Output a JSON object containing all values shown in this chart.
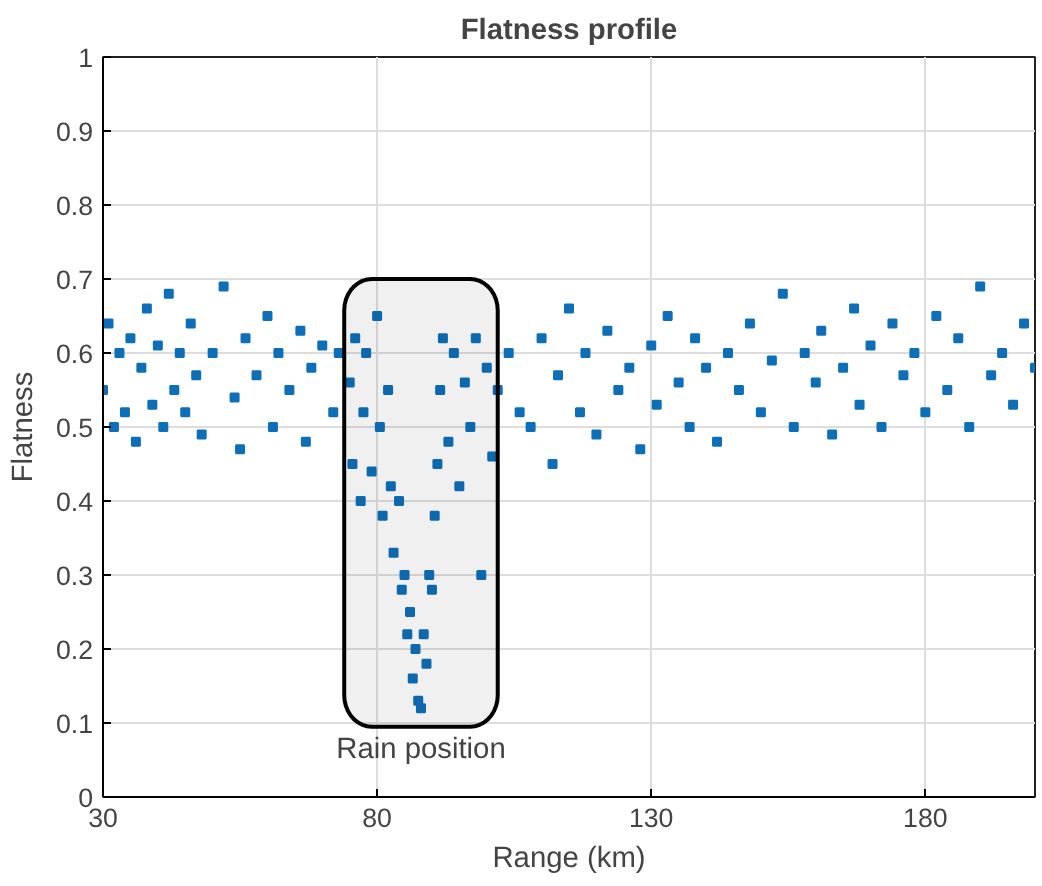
{
  "chart_data": {
    "type": "scatter",
    "title": "Flatness profile",
    "xlabel": "Range (km)",
    "ylabel": "Flatness",
    "x": [
      30,
      31,
      32,
      33,
      34,
      35,
      36,
      37,
      38,
      39,
      40,
      41,
      42,
      43,
      44,
      45,
      46,
      47,
      48,
      50,
      52,
      54,
      55,
      56,
      58,
      60,
      61,
      62,
      64,
      66,
      67,
      68,
      70,
      72,
      73,
      75,
      75.5,
      76,
      77,
      77.5,
      78,
      79,
      80,
      80.5,
      81,
      82,
      82.5,
      83,
      84,
      84.5,
      85,
      85.5,
      86,
      86.5,
      87,
      87.5,
      88,
      88.5,
      89,
      89.5,
      90,
      90.5,
      91,
      91.5,
      92,
      93,
      94,
      95,
      96,
      97,
      98,
      99,
      100,
      101,
      102,
      104,
      106,
      108,
      110,
      112,
      113,
      115,
      117,
      118,
      120,
      122,
      124,
      126,
      128,
      130,
      131,
      133,
      135,
      137,
      138,
      140,
      142,
      144,
      146,
      148,
      150,
      152,
      154,
      156,
      158,
      160,
      161,
      163,
      165,
      167,
      168,
      170,
      172,
      174,
      176,
      178,
      180,
      182,
      184,
      186,
      188,
      190,
      192,
      194,
      196,
      198,
      200
    ],
    "values": [
      0.55,
      0.64,
      0.5,
      0.6,
      0.52,
      0.62,
      0.48,
      0.58,
      0.66,
      0.53,
      0.61,
      0.5,
      0.68,
      0.55,
      0.6,
      0.52,
      0.64,
      0.57,
      0.49,
      0.6,
      0.69,
      0.54,
      0.47,
      0.62,
      0.57,
      0.65,
      0.5,
      0.6,
      0.55,
      0.63,
      0.48,
      0.58,
      0.61,
      0.52,
      0.6,
      0.56,
      0.45,
      0.62,
      0.4,
      0.52,
      0.6,
      0.44,
      0.65,
      0.5,
      0.38,
      0.55,
      0.42,
      0.33,
      0.4,
      0.28,
      0.3,
      0.22,
      0.25,
      0.16,
      0.2,
      0.13,
      0.12,
      0.22,
      0.18,
      0.3,
      0.28,
      0.38,
      0.45,
      0.55,
      0.62,
      0.48,
      0.6,
      0.42,
      0.56,
      0.5,
      0.62,
      0.3,
      0.58,
      0.46,
      0.55,
      0.6,
      0.52,
      0.5,
      0.62,
      0.45,
      0.57,
      0.66,
      0.52,
      0.6,
      0.49,
      0.63,
      0.55,
      0.58,
      0.47,
      0.61,
      0.53,
      0.65,
      0.56,
      0.5,
      0.62,
      0.58,
      0.48,
      0.6,
      0.55,
      0.64,
      0.52,
      0.59,
      0.68,
      0.5,
      0.6,
      0.56,
      0.63,
      0.49,
      0.58,
      0.66,
      0.53,
      0.61,
      0.5,
      0.64,
      0.57,
      0.6,
      0.52,
      0.65,
      0.55,
      0.62,
      0.5,
      0.69,
      0.57,
      0.6,
      0.53,
      0.64,
      0.58
    ],
    "color": "#0e6fb8",
    "marker": "square",
    "xlim": [
      30,
      200
    ],
    "ylim": [
      0,
      1
    ],
    "xticks": [
      30,
      80,
      130,
      180
    ],
    "yticks": [
      0,
      0.1,
      0.2,
      0.3,
      0.4,
      0.5,
      0.6,
      0.7,
      0.8,
      0.9,
      1
    ],
    "bands": [
      {
        "axis": "x",
        "from": 74,
        "to": 102,
        "label": "Rain position",
        "color": "#000000"
      }
    ],
    "grid": true
  }
}
